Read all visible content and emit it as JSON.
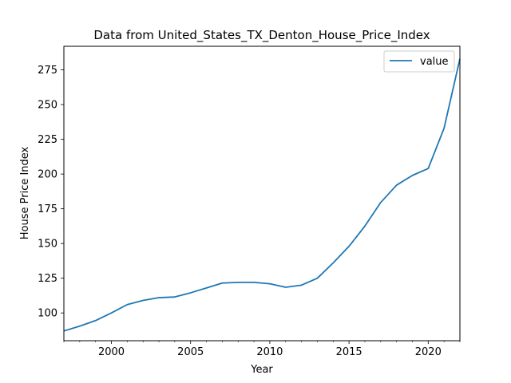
{
  "chart_data": {
    "type": "line",
    "title": "Data from United_States_TX_Denton_House_Price_Index",
    "xlabel": "Year",
    "ylabel": "House Price Index",
    "xlim": [
      1997,
      2022
    ],
    "ylim": [
      80,
      292
    ],
    "xticks": [
      2000,
      2005,
      2010,
      2015,
      2020
    ],
    "yticks": [
      100,
      125,
      150,
      175,
      200,
      225,
      250,
      275
    ],
    "grid": false,
    "legend_position": "top-right",
    "series": [
      {
        "name": "value",
        "color": "#1f77b4",
        "x": [
          1997,
          1998,
          1999,
          2000,
          2001,
          2002,
          2003,
          2004,
          2005,
          2006,
          2007,
          2008,
          2009,
          2010,
          2011,
          2012,
          2013,
          2014,
          2015,
          2016,
          2017,
          2018,
          2019,
          2020,
          2021,
          2022
        ],
        "values": [
          87,
          90.5,
          94.5,
          100,
          106,
          109,
          111,
          111.5,
          114.5,
          118,
          121.5,
          122,
          122,
          121,
          118.5,
          120,
          125,
          136,
          148,
          162.5,
          179.5,
          192,
          199,
          204,
          233,
          283
        ]
      }
    ]
  }
}
